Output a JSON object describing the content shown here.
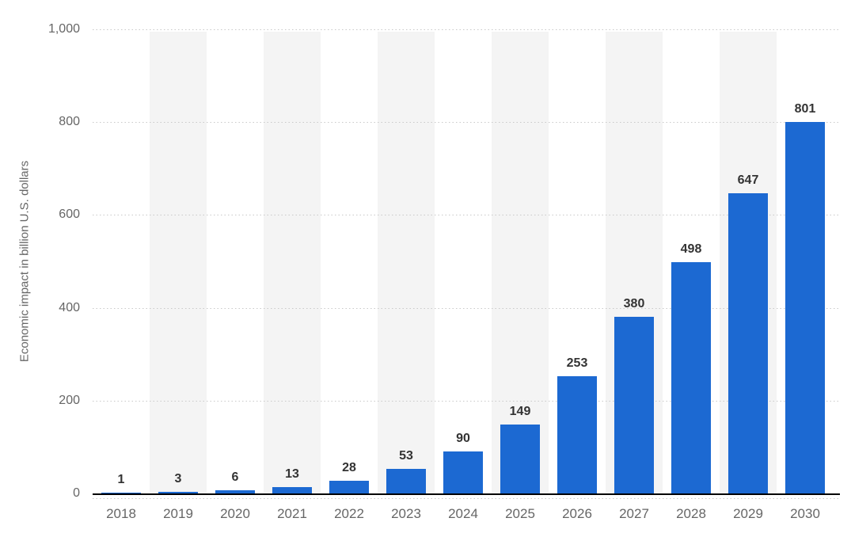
{
  "chart_data": {
    "type": "bar",
    "categories": [
      "2018",
      "2019",
      "2020",
      "2021",
      "2022",
      "2023",
      "2024",
      "2025",
      "2026",
      "2027",
      "2028",
      "2029",
      "2030"
    ],
    "values": [
      1,
      3,
      6,
      13,
      28,
      53,
      90,
      149,
      253,
      380,
      498,
      647,
      801
    ],
    "title": "",
    "xlabel": "",
    "ylabel": "Economic impact in billion U.S. dollars",
    "ylim": [
      0,
      1000
    ],
    "yticks": [
      {
        "value": 0,
        "label": "0"
      },
      {
        "value": 200,
        "label": "200"
      },
      {
        "value": 400,
        "label": "400"
      },
      {
        "value": 600,
        "label": "600"
      },
      {
        "value": 800,
        "label": "800"
      },
      {
        "value": 1000,
        "label": "1,000"
      }
    ],
    "value_labels": true,
    "legend": "none",
    "grid": true,
    "gridline_style": "dotted",
    "zebra_bands": true,
    "colors": {
      "bar": "#1c69d2",
      "band": "#f4f4f4",
      "gridline": "#c9c9c9",
      "axis_line": "#000000",
      "tick_text": "#666666",
      "value_text": "#333333",
      "background": "#ffffff"
    }
  }
}
